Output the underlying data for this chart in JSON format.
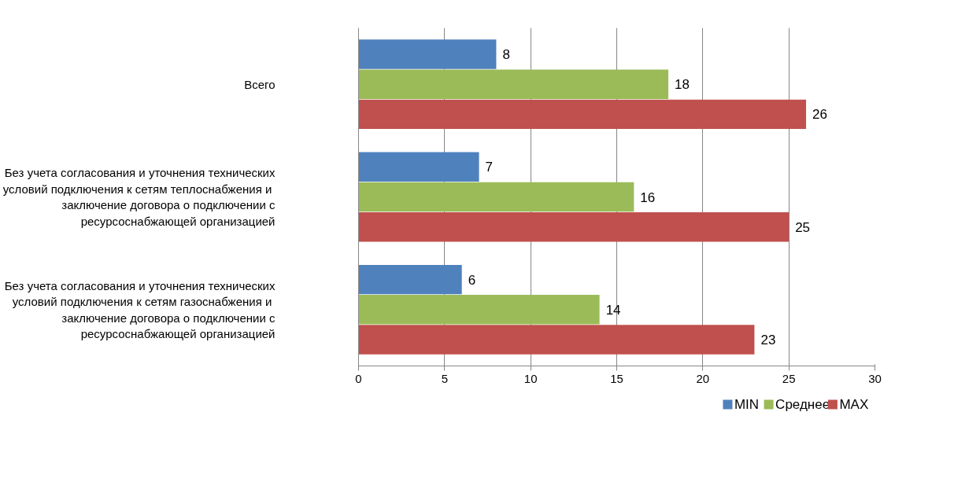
{
  "chart_data": {
    "type": "bar",
    "orientation": "horizontal",
    "categories": [
      "Всего",
      "Без учета согласования и уточнения технических условий подключения  к сетям теплоснабжения и заключение договора о подключении с ресурсоснабжающей организацией",
      "Без учета согласования и уточнения технических условий подключения  к сетям газоснабжения и заключение договора о подключении с ресурсоснабжающей организацией"
    ],
    "series": [
      {
        "name": "MIN",
        "color": "#4f81bd",
        "values": [
          8,
          7,
          6
        ]
      },
      {
        "name": "Среднее",
        "color": "#9bbb59",
        "values": [
          18,
          16,
          14
        ]
      },
      {
        "name": "MAX",
        "color": "#c0504d",
        "values": [
          26,
          25,
          23
        ]
      }
    ],
    "xlim": [
      0,
      30
    ],
    "xticks": [
      0,
      5,
      10,
      15,
      20,
      25,
      30
    ],
    "grid": "x",
    "legend": "bottom",
    "data_labels": true
  }
}
